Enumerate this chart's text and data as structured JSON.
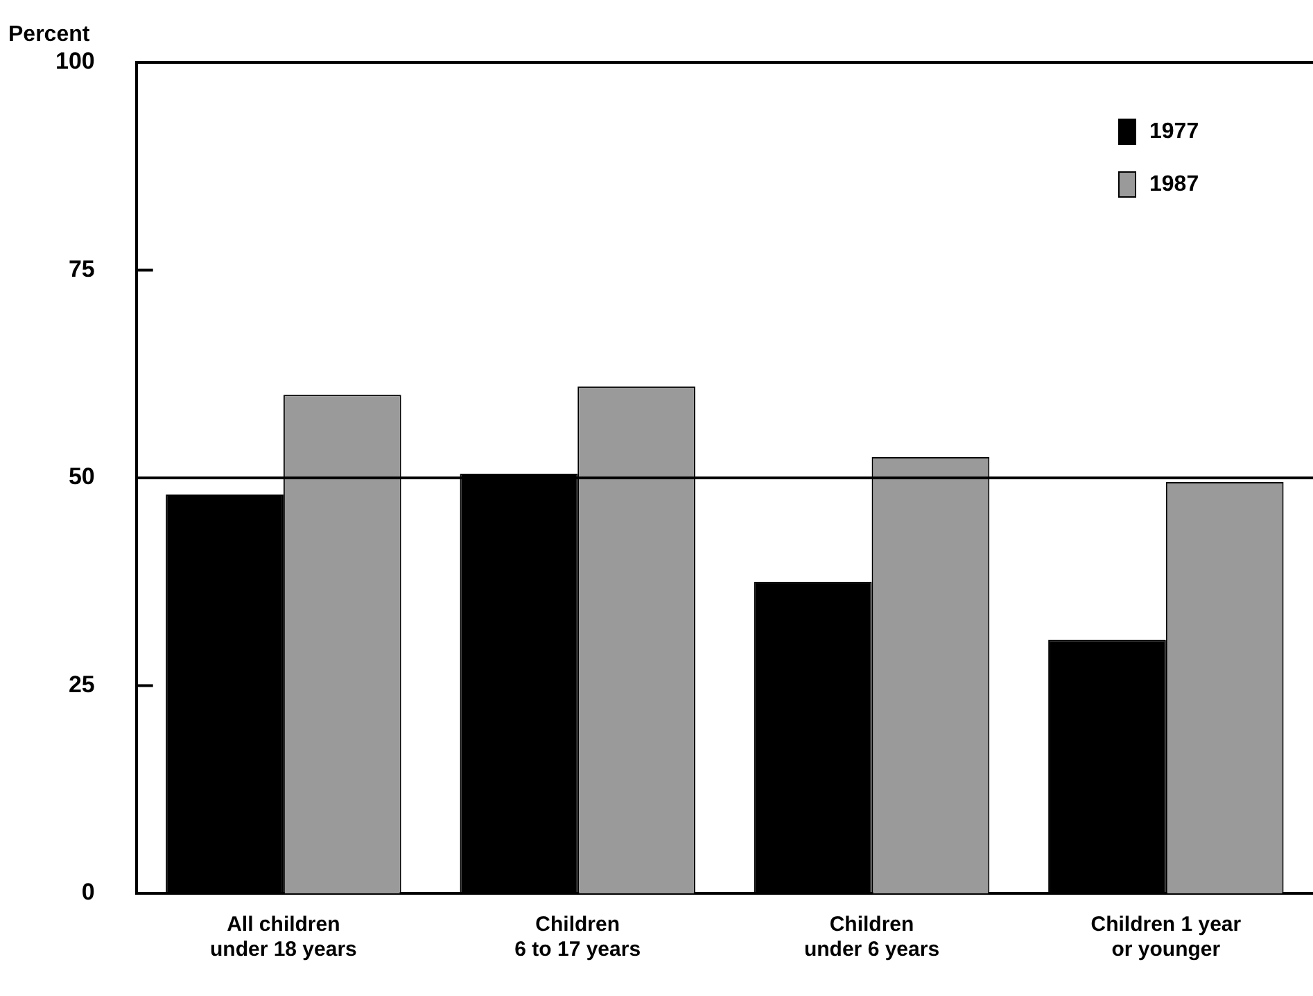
{
  "chart_data": {
    "type": "bar",
    "ylabel": "Percent",
    "categories": [
      "All children\nunder 18 years",
      "Children\n6 to 17 years",
      "Children\nunder 6 years",
      "Children 1 year\nor younger"
    ],
    "series": [
      {
        "name": "1977",
        "color": "#000000",
        "values": [
          48,
          50.5,
          37.5,
          30.5
        ]
      },
      {
        "name": "1987",
        "color": "#9a9a9a",
        "values": [
          60,
          61,
          52.5,
          49.5
        ]
      }
    ],
    "ylim": [
      0,
      100
    ],
    "yticks": [
      0,
      25,
      50,
      75,
      100
    ],
    "ref_lines": [
      {
        "axis": "y",
        "value": 50
      }
    ],
    "legend": "top right"
  }
}
